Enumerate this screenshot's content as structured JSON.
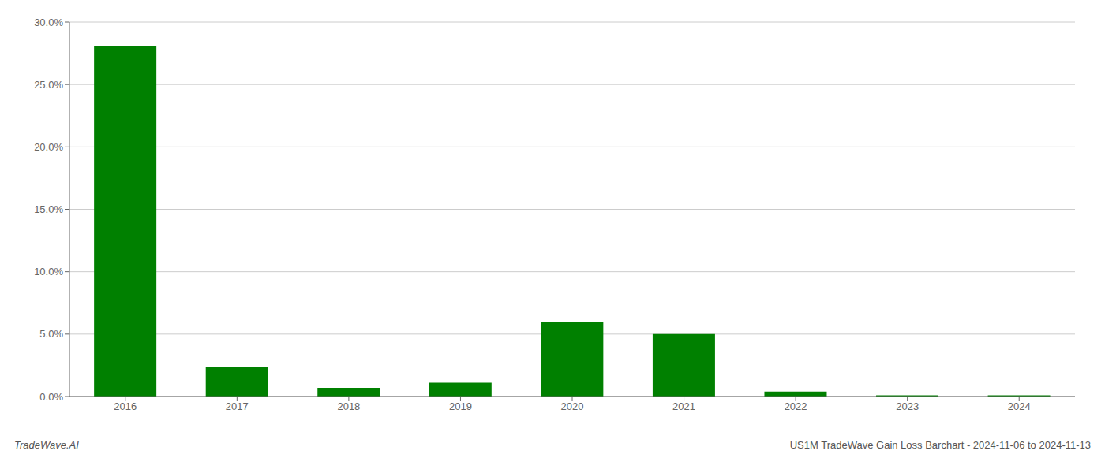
{
  "chart_data": {
    "type": "bar",
    "categories": [
      "2016",
      "2017",
      "2018",
      "2019",
      "2020",
      "2021",
      "2022",
      "2023",
      "2024"
    ],
    "values": [
      0.281,
      0.024,
      0.007,
      0.011,
      0.06,
      0.05,
      0.004,
      0.001,
      0.001
    ],
    "color": "#008000",
    "ylim": [
      0,
      0.3
    ],
    "yticks": [
      {
        "value": 0.0,
        "label": "0.0%"
      },
      {
        "value": 0.05,
        "label": "5.0%"
      },
      {
        "value": 0.1,
        "label": "10.0%"
      },
      {
        "value": 0.15,
        "label": "15.0%"
      },
      {
        "value": 0.2,
        "label": "20.0%"
      },
      {
        "value": 0.25,
        "label": "25.0%"
      },
      {
        "value": 0.3,
        "label": "30.0%"
      }
    ],
    "grid": true,
    "annotations": [
      "TradeWave.AI",
      "US1M TradeWave Gain Loss Barchart - 2024-11-06 to 2024-11-13"
    ]
  }
}
